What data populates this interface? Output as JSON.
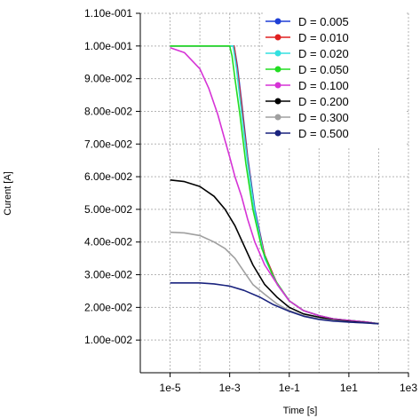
{
  "chart_data": {
    "type": "line",
    "xlabel": "Time [s]",
    "ylabel": "Curent [A]",
    "xscale": "log",
    "xlim": [
      1e-06,
      1000
    ],
    "ylim": [
      0,
      0.11
    ],
    "x_ticks": [
      {
        "value": 1e-05,
        "label": "1e-5"
      },
      {
        "value": 0.001,
        "label": "1e-3"
      },
      {
        "value": 0.1,
        "label": "1e-1"
      },
      {
        "value": 10,
        "label": "1e1"
      },
      {
        "value": 1000,
        "label": "1e3"
      }
    ],
    "y_ticks": [
      {
        "value": 0.01,
        "label": "1.00e-002"
      },
      {
        "value": 0.02,
        "label": "2.00e-002"
      },
      {
        "value": 0.03,
        "label": "3.00e-002"
      },
      {
        "value": 0.04,
        "label": "4.00e-002"
      },
      {
        "value": 0.05,
        "label": "5.00e-002"
      },
      {
        "value": 0.06,
        "label": "6.00e-002"
      },
      {
        "value": 0.07,
        "label": "7.00e-002"
      },
      {
        "value": 0.08,
        "label": "8.00e-002"
      },
      {
        "value": 0.09,
        "label": "9.00e-002"
      },
      {
        "value": 0.1,
        "label": "1.00e-001"
      },
      {
        "value": 0.11,
        "label": "1.10e-001"
      }
    ],
    "grid": true,
    "legend_position": "top-right",
    "series": [
      {
        "name": "D = 0.005",
        "color": "#1f3fd6",
        "x": [
          1e-05,
          0.0011,
          0.0014,
          0.0018,
          0.0025,
          0.004,
          0.007,
          0.015,
          0.04,
          0.1,
          0.3,
          1,
          3,
          10,
          40,
          100
        ],
        "y": [
          0.1,
          0.1,
          0.1,
          0.094,
          0.083,
          0.066,
          0.05,
          0.036,
          0.027,
          0.022,
          0.019,
          0.0175,
          0.0165,
          0.016,
          0.0155,
          0.015
        ]
      },
      {
        "name": "D = 0.010",
        "color": "#e02020",
        "x": [
          1e-05,
          0.0011,
          0.0014,
          0.0018,
          0.0025,
          0.004,
          0.007,
          0.015,
          0.04,
          0.1,
          0.3,
          1,
          3,
          10,
          40,
          100
        ],
        "y": [
          0.1,
          0.1,
          0.1,
          0.093,
          0.082,
          0.065,
          0.049,
          0.036,
          0.027,
          0.022,
          0.019,
          0.0175,
          0.0165,
          0.016,
          0.0155,
          0.015
        ]
      },
      {
        "name": "D = 0.020",
        "color": "#33e0e0",
        "x": [
          1e-05,
          0.0011,
          0.0013,
          0.0017,
          0.0024,
          0.004,
          0.007,
          0.015,
          0.04,
          0.1,
          0.3,
          1,
          3,
          10,
          40,
          100
        ],
        "y": [
          0.1,
          0.1,
          0.1,
          0.093,
          0.081,
          0.064,
          0.049,
          0.035,
          0.027,
          0.022,
          0.019,
          0.0175,
          0.0165,
          0.016,
          0.0155,
          0.015
        ]
      },
      {
        "name": "D = 0.050",
        "color": "#22dd22",
        "x": [
          1e-05,
          0.001,
          0.0012,
          0.0015,
          0.0022,
          0.0035,
          0.006,
          0.012,
          0.03,
          0.1,
          0.3,
          1,
          3,
          10,
          40,
          100
        ],
        "y": [
          0.1,
          0.1,
          0.097,
          0.09,
          0.079,
          0.064,
          0.05,
          0.038,
          0.029,
          0.022,
          0.019,
          0.0175,
          0.0165,
          0.016,
          0.0155,
          0.015
        ]
      },
      {
        "name": "D = 0.100",
        "color": "#d633d6",
        "x": [
          1e-05,
          3e-05,
          0.0001,
          0.0002,
          0.0004,
          0.0007,
          0.001,
          0.0015,
          0.0025,
          0.004,
          0.007,
          0.015,
          0.04,
          0.1,
          0.3,
          1,
          3,
          10,
          40,
          100
        ],
        "y": [
          0.0995,
          0.098,
          0.093,
          0.087,
          0.079,
          0.071,
          0.066,
          0.06,
          0.054,
          0.047,
          0.04,
          0.033,
          0.027,
          0.022,
          0.019,
          0.0175,
          0.0165,
          0.016,
          0.0155,
          0.015
        ]
      },
      {
        "name": "D = 0.200",
        "color": "#000000",
        "x": [
          1e-05,
          3e-05,
          0.0001,
          0.0003,
          0.0007,
          0.0015,
          0.003,
          0.006,
          0.015,
          0.04,
          0.1,
          0.3,
          1,
          3,
          10,
          40,
          100
        ],
        "y": [
          0.059,
          0.0585,
          0.057,
          0.054,
          0.05,
          0.045,
          0.039,
          0.033,
          0.027,
          0.023,
          0.02,
          0.018,
          0.017,
          0.0162,
          0.0157,
          0.0153,
          0.015
        ]
      },
      {
        "name": "D = 0.300",
        "color": "#a0a0a0",
        "x": [
          1e-05,
          3e-05,
          0.0001,
          0.0003,
          0.0007,
          0.0015,
          0.003,
          0.006,
          0.015,
          0.04,
          0.1,
          0.3,
          1,
          3,
          10,
          40,
          100
        ],
        "y": [
          0.043,
          0.0428,
          0.042,
          0.04,
          0.038,
          0.035,
          0.031,
          0.027,
          0.024,
          0.021,
          0.019,
          0.0175,
          0.0165,
          0.016,
          0.0155,
          0.0152,
          0.015
        ]
      },
      {
        "name": "D = 0.500",
        "color": "#1a237e",
        "x": [
          1e-05,
          0.0001,
          0.0003,
          0.001,
          0.003,
          0.01,
          0.03,
          0.1,
          0.3,
          1,
          3,
          10,
          40,
          100
        ],
        "y": [
          0.0275,
          0.0275,
          0.0272,
          0.0265,
          0.0252,
          0.0232,
          0.0208,
          0.0188,
          0.0173,
          0.0163,
          0.0158,
          0.0155,
          0.0152,
          0.015
        ]
      }
    ]
  }
}
